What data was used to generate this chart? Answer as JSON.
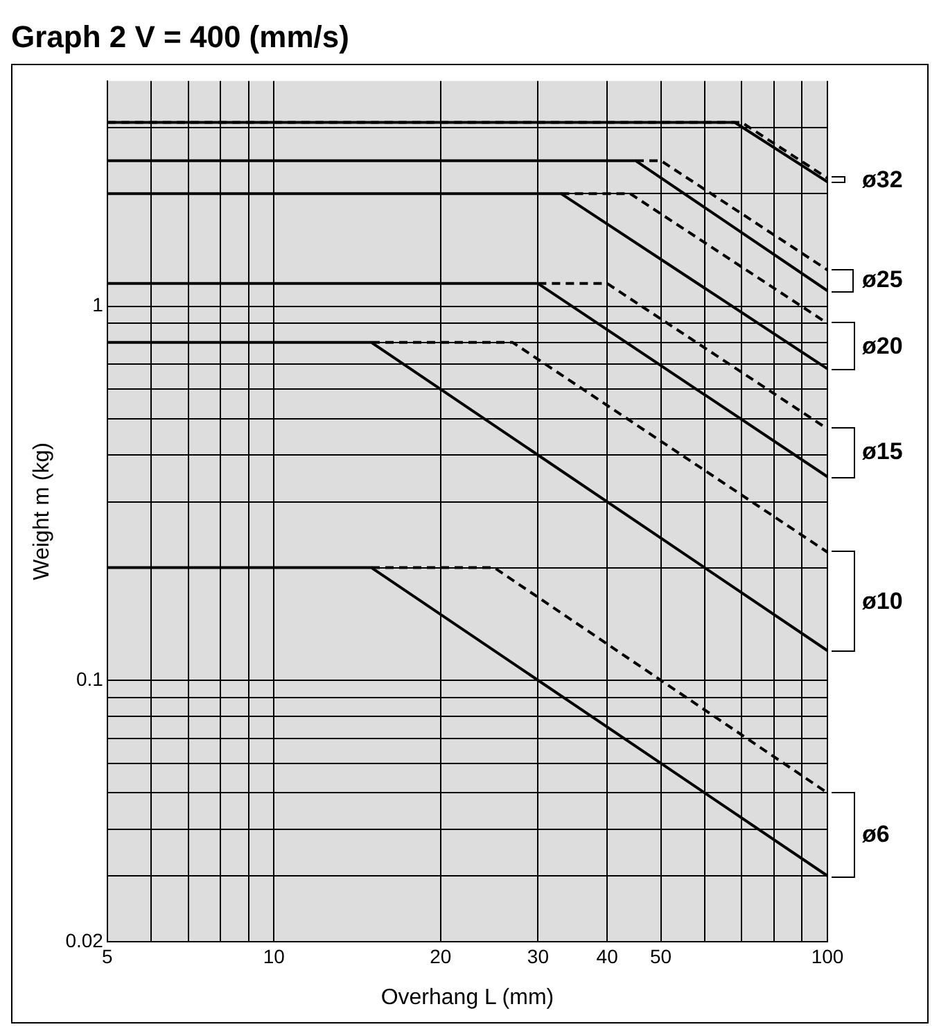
{
  "chart_data": {
    "type": "line",
    "title": "Graph 2  V = 400 (mm/s)",
    "xlabel": "Overhang L (mm)",
    "ylabel": "Weight m (kg)",
    "log": "xy",
    "grid": true,
    "marker": "none",
    "xlim": [
      5,
      100
    ],
    "xticks": [
      5,
      {
        "value": 6,
        "label": null
      },
      {
        "value": 7,
        "label": null
      },
      {
        "value": 8,
        "label": null
      },
      {
        "value": 9,
        "label": null
      },
      10,
      20,
      30,
      40,
      50,
      {
        "value": 60,
        "label": null
      },
      {
        "value": 70,
        "label": null
      },
      {
        "value": 80,
        "label": null
      },
      {
        "value": 90,
        "label": null
      },
      100
    ],
    "ylim": [
      0.02,
      4
    ],
    "yticks": [
      0.02,
      {
        "value": 0.03,
        "label": null
      },
      {
        "value": 0.04,
        "label": null
      },
      {
        "value": 0.05,
        "label": null
      },
      {
        "value": 0.06,
        "label": null
      },
      {
        "value": 0.07,
        "label": null
      },
      {
        "value": 0.08,
        "label": null
      },
      {
        "value": 0.09,
        "label": null
      },
      0.1,
      {
        "value": 0.2,
        "label": null
      },
      {
        "value": 0.3,
        "label": null
      },
      {
        "value": 0.4,
        "label": null
      },
      {
        "value": 0.5,
        "label": null
      },
      {
        "value": 0.6,
        "label": null
      },
      {
        "value": 0.7,
        "label": null
      },
      {
        "value": 0.8,
        "label": null
      },
      {
        "value": 0.9,
        "label": null
      },
      1,
      {
        "value": 2,
        "label": null
      },
      {
        "value": 3,
        "label": null
      }
    ],
    "series": [
      {
        "color": "#000000",
        "line_style": "solid",
        "x": [
          5,
          68,
          100
        ],
        "values": [
          3.1,
          3.1,
          2.15
        ]
      },
      {
        "color": "#000000",
        "line_style": "dashed",
        "x": [
          5,
          70,
          100
        ],
        "values": [
          3.1,
          3.1,
          2.2
        ]
      },
      {
        "color": "#000000",
        "line_style": "solid",
        "x": [
          5,
          45,
          100
        ],
        "values": [
          2.45,
          2.45,
          1.1
        ]
      },
      {
        "color": "#000000",
        "line_style": "dashed",
        "x": [
          45,
          50,
          100
        ],
        "values": [
          2.45,
          2.45,
          1.25
        ]
      },
      {
        "color": "#000000",
        "line_style": "solid",
        "x": [
          5,
          33,
          100
        ],
        "values": [
          2,
          2,
          0.68
        ]
      },
      {
        "color": "#000000",
        "line_style": "dashed",
        "x": [
          33,
          44,
          100
        ],
        "values": [
          2,
          2,
          0.9
        ]
      },
      {
        "color": "#000000",
        "line_style": "solid",
        "x": [
          5,
          30,
          100
        ],
        "values": [
          1.15,
          1.15,
          0.35
        ]
      },
      {
        "color": "#000000",
        "line_style": "dashed",
        "x": [
          30,
          40,
          100
        ],
        "values": [
          1.15,
          1.15,
          0.47
        ]
      },
      {
        "color": "#000000",
        "line_style": "solid",
        "x": [
          5,
          15,
          100
        ],
        "values": [
          0.8,
          0.8,
          0.12
        ]
      },
      {
        "color": "#000000",
        "line_style": "dashed",
        "x": [
          15,
          27,
          100
        ],
        "values": [
          0.8,
          0.8,
          0.22
        ]
      },
      {
        "color": "#000000",
        "line_style": "solid",
        "x": [
          5,
          15,
          100
        ],
        "values": [
          0.2,
          0.2,
          0.03
        ]
      },
      {
        "color": "#000000",
        "line_style": "dashed",
        "x": [
          15,
          25,
          100
        ],
        "values": [
          0.2,
          0.2,
          0.05
        ]
      }
    ],
    "annotations": [
      "ø32",
      "ø25",
      "ø20",
      "ø15",
      "ø10",
      "ø6"
    ]
  }
}
